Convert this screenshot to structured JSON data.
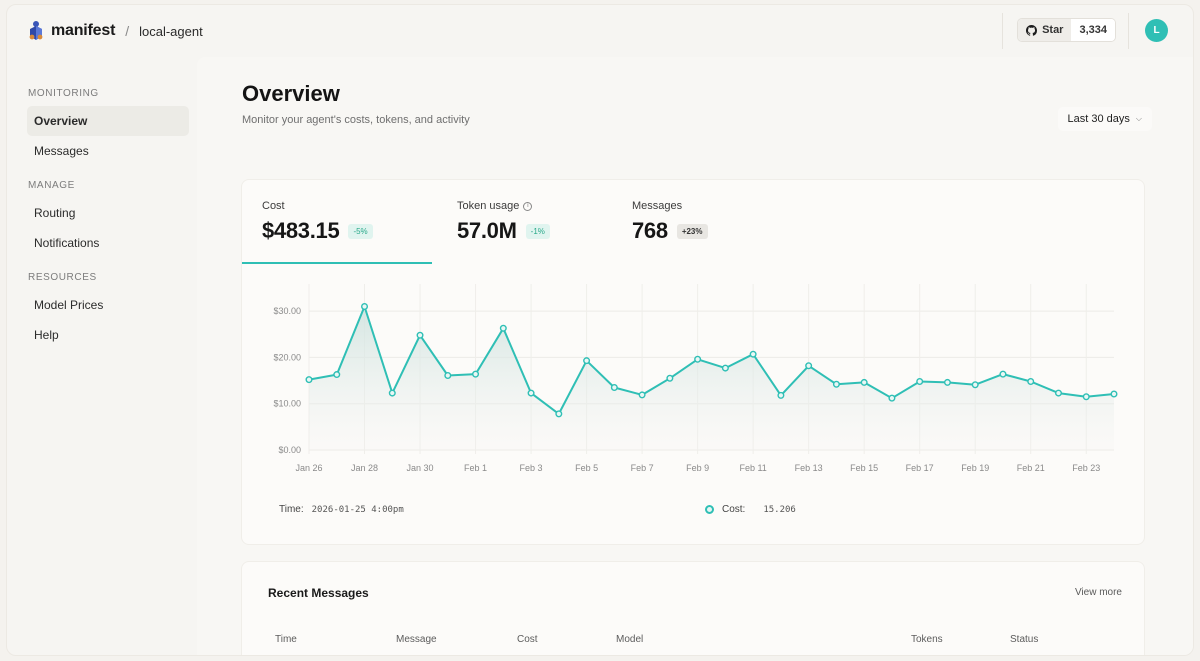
{
  "header": {
    "brand": "manifest",
    "separator": "/",
    "project": "local-agent",
    "github_star_label": "Star",
    "github_star_count": "3,334",
    "avatar_initial": "L"
  },
  "sidebar": {
    "sections": [
      {
        "title": "MONITORING",
        "items": [
          "Overview",
          "Messages"
        ]
      },
      {
        "title": "MANAGE",
        "items": [
          "Routing",
          "Notifications"
        ]
      },
      {
        "title": "RESOURCES",
        "items": [
          "Model Prices",
          "Help"
        ]
      }
    ],
    "active_item": "Overview"
  },
  "page": {
    "title": "Overview",
    "subtitle": "Monitor your agent's costs, tokens, and activity",
    "range_label": "Last 30 days"
  },
  "kpis": [
    {
      "label": "Cost",
      "value": "$483.15",
      "change": "-5%"
    },
    {
      "label": "Token usage",
      "value": "57.0M",
      "change": "-1%"
    },
    {
      "label": "Messages",
      "value": "768",
      "change": "+23%"
    }
  ],
  "tooltip": {
    "time_label": "Time:",
    "time_value": "2026-01-25 4:00pm",
    "series_label": "Cost:",
    "series_value": "15.206"
  },
  "chart_data": {
    "type": "area",
    "title": "",
    "xlabel": "",
    "ylabel": "",
    "y_ticks": [
      "$0.00",
      "$10.00",
      "$20.00",
      "$30.00"
    ],
    "ylim": [
      0,
      35
    ],
    "x_ticks": [
      "Jan 26",
      "Jan 28",
      "Jan 30",
      "Feb 1",
      "Feb 3",
      "Feb 5",
      "Feb 7",
      "Feb 9",
      "Feb 11",
      "Feb 13",
      "Feb 15",
      "Feb 17",
      "Feb 19",
      "Feb 21",
      "Feb 23"
    ],
    "color": "#2fbfb5",
    "grid": true,
    "series": [
      {
        "values": [
          15.2,
          16.3,
          31.0,
          12.3,
          24.8,
          16.1,
          16.4,
          26.3,
          12.3,
          7.8,
          19.3,
          13.5,
          11.9,
          15.5,
          19.6,
          17.7,
          20.7,
          11.8,
          18.2,
          14.2,
          14.6,
          11.2,
          14.8,
          14.6,
          14.1,
          16.4,
          14.8,
          12.3,
          11.5,
          12.1
        ]
      }
    ]
  },
  "recent_messages": {
    "title": "Recent Messages",
    "view_more": "View more",
    "columns": [
      "Time",
      "Message",
      "Cost",
      "Model",
      "Tokens",
      "Status"
    ]
  }
}
